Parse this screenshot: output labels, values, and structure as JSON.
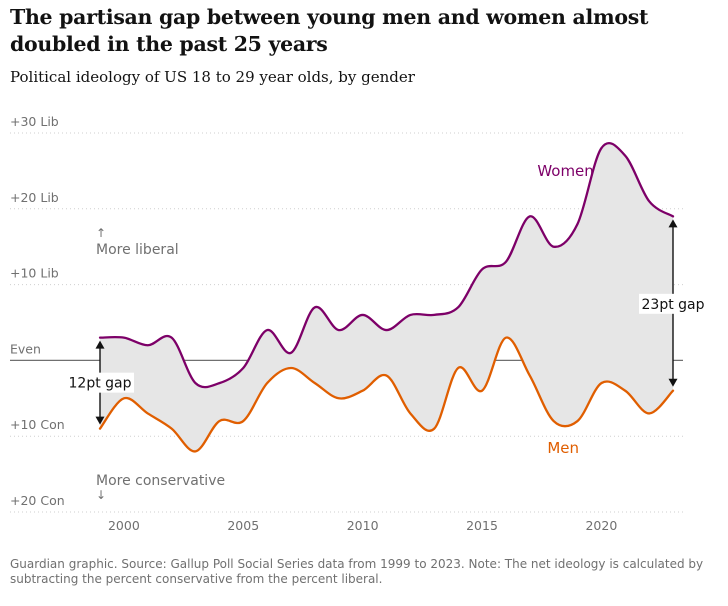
{
  "header": {
    "title": "The partisan gap between young men and women almost doubled in the past 25 years",
    "subtitle": "Political ideology of US 18 to 29 year olds, by gender"
  },
  "footer": {
    "source": "Guardian graphic. Source: Gallup Poll Social Series data from 1999 to 2023. Note: The net ideology is calculated by subtracting the percent conservative from the percent liberal."
  },
  "chart_data": {
    "type": "line",
    "x": [
      1999,
      2000,
      2001,
      2002,
      2003,
      2004,
      2005,
      2006,
      2007,
      2008,
      2009,
      2010,
      2011,
      2012,
      2013,
      2014,
      2015,
      2016,
      2017,
      2018,
      2019,
      2020,
      2021,
      2022,
      2023
    ],
    "series": [
      {
        "name": "Women",
        "color": "#7d0068",
        "values": [
          3,
          3,
          2,
          3,
          -3,
          -3,
          -1,
          4,
          1,
          7,
          4,
          6,
          4,
          6,
          6,
          7,
          12,
          13,
          19,
          15,
          18,
          28,
          27,
          21,
          19
        ]
      },
      {
        "name": "Men",
        "color": "#e05e00",
        "values": [
          -9,
          -5,
          -7,
          -9,
          -12,
          -8,
          -8,
          -3,
          -1,
          -3,
          -5,
          -4,
          -2,
          -7,
          -9,
          -1,
          -4,
          3,
          -2,
          -8,
          -8,
          -3,
          -4,
          -7,
          -4
        ]
      }
    ],
    "y_ticks": [
      {
        "value": 30,
        "label": "+30 Lib"
      },
      {
        "value": 20,
        "label": "+20 Lib"
      },
      {
        "value": 10,
        "label": "+10 Lib"
      },
      {
        "value": 0,
        "label": "Even"
      },
      {
        "value": -10,
        "label": "+10 Con"
      },
      {
        "value": -20,
        "label": "+20 Con"
      }
    ],
    "x_ticks": [
      2000,
      2005,
      2010,
      2015,
      2020
    ],
    "xlim": [
      1999,
      2023
    ],
    "ylim": [
      -20,
      30
    ],
    "grid": true,
    "gap_fill_color": "#e6e6e6",
    "annotations": {
      "more_liberal": "More liberal",
      "more_conservative": "More conservative",
      "gap_1999": "12pt gap",
      "gap_2023": "23pt gap",
      "arrow_up_glyph": "↑",
      "arrow_down_glyph": "↓"
    }
  }
}
